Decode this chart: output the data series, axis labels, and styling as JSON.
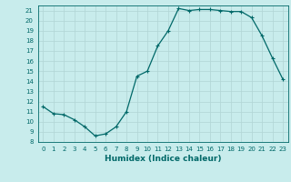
{
  "x": [
    0,
    1,
    2,
    3,
    4,
    5,
    6,
    7,
    8,
    9,
    10,
    11,
    12,
    13,
    14,
    15,
    16,
    17,
    18,
    19,
    20,
    21,
    22,
    23
  ],
  "y": [
    11.5,
    10.8,
    10.7,
    10.2,
    9.5,
    8.6,
    8.8,
    9.5,
    11.0,
    14.5,
    15.0,
    17.5,
    19.0,
    21.2,
    21.0,
    21.1,
    21.1,
    21.0,
    20.9,
    20.9,
    20.3,
    18.5,
    16.3,
    14.2
  ],
  "xlim": [
    -0.5,
    23.5
  ],
  "ylim": [
    8,
    21.5
  ],
  "yticks": [
    8,
    9,
    10,
    11,
    12,
    13,
    14,
    15,
    16,
    17,
    18,
    19,
    20,
    21
  ],
  "xticks": [
    0,
    1,
    2,
    3,
    4,
    5,
    6,
    7,
    8,
    9,
    10,
    11,
    12,
    13,
    14,
    15,
    16,
    17,
    18,
    19,
    20,
    21,
    22,
    23
  ],
  "xlabel": "Humidex (Indice chaleur)",
  "line_color": "#006868",
  "marker": "+",
  "bg_color": "#c8ecec",
  "grid_color": "#b0d4d4",
  "tick_fontsize": 5.0,
  "xlabel_fontsize": 6.5
}
